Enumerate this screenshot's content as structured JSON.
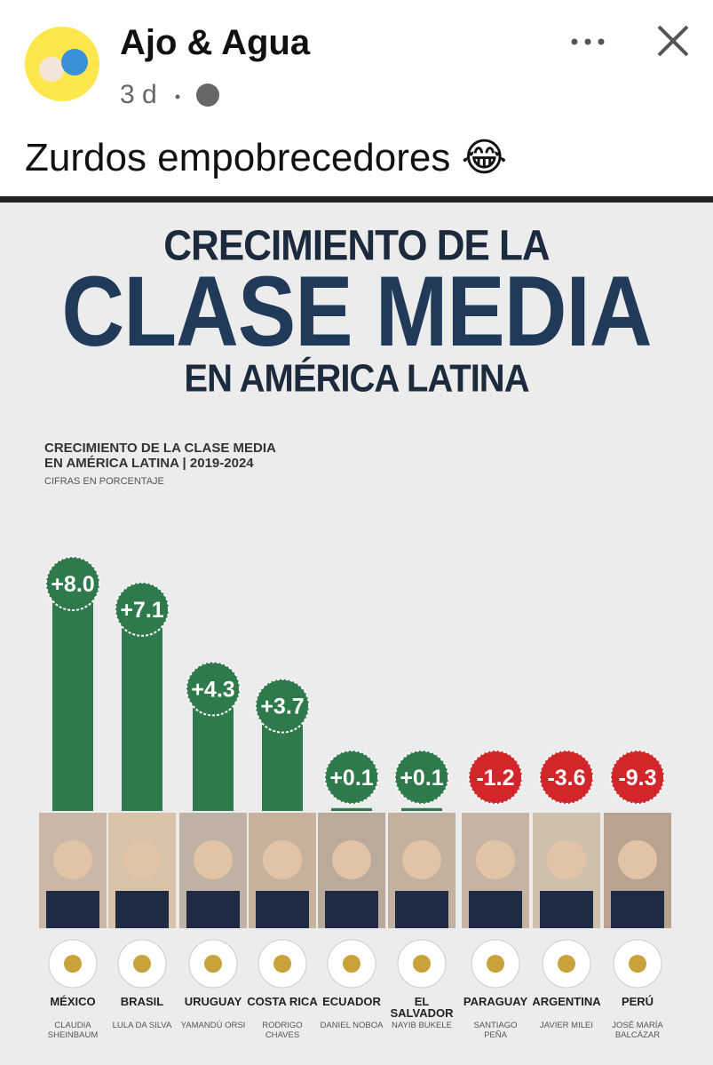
{
  "post": {
    "author": "Ajo & Agua",
    "time": "3 d",
    "text": "Zurdos empobrecedores 😂"
  },
  "infographic": {
    "title": [
      "CRECIMIENTO DE LA",
      "CLASE MEDIA",
      "EN AMÉRICA LATINA"
    ],
    "chart_data": {
      "type": "bar",
      "title": "CRECIMIENTO DE LA CLASE MEDIA EN AMÉRICA LATINA | 2019-2024",
      "subtitle": "CIFRAS EN PORCENTAJE",
      "categories": [
        "MÉXICO",
        "BRASIL",
        "URUGUAY",
        "COSTA RICA",
        "ECUADOR",
        "EL SALVADOR",
        "PARAGUAY",
        "ARGENTINA",
        "PERÚ"
      ],
      "leaders": [
        "CLAUDIA SHEINBAUM",
        "LULA DA SILVA",
        "YAMANDÚ ORSI",
        "RODRIGO CHAVES",
        "DANIEL NOBOA",
        "NAYIB BUKELE",
        "SANTIAGO PEÑA",
        "JAVIER MILEI",
        "JOSÉ MARÍA BALCÁZAR"
      ],
      "values": [
        8.0,
        7.1,
        4.3,
        3.7,
        0.1,
        0.1,
        -1.2,
        -3.6,
        -9.3
      ],
      "value_labels": [
        "+8.0",
        "+7.1",
        "+4.3",
        "+3.7",
        "+0.1",
        "+0.1",
        "-1.2",
        "-3.6",
        "-9.3"
      ],
      "colors": {
        "positive": "#2f7a4c",
        "negative": "#d3262b"
      }
    }
  }
}
